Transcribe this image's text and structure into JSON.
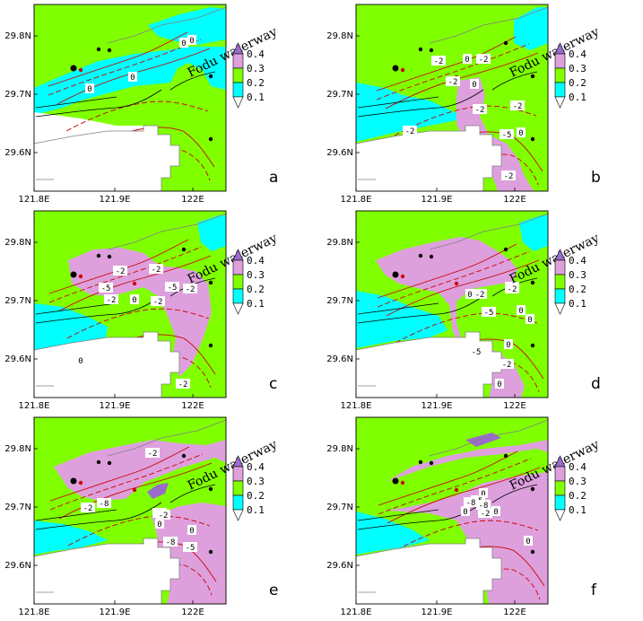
{
  "figure": {
    "waterway_label": "Fodu waterway",
    "x_ticks": [
      "121.8E",
      "121.9E",
      "122E"
    ],
    "y_ticks": [
      "29.8N",
      "29.7N",
      "29.6N"
    ],
    "legend_levels": [
      "0.4",
      "0.3",
      "0.2",
      "0.1"
    ],
    "legend_colors": [
      "#9b6bcc",
      "#dda0dd",
      "#80ff00",
      "#00ffff",
      "#ffffff"
    ],
    "contour_colors": {
      "positive": "#000000",
      "negative": "#cc0000",
      "coast": "#808080"
    },
    "panels": [
      {
        "label": "a",
        "contour_labels": [
          "0",
          "0",
          "0",
          "0"
        ]
      },
      {
        "label": "b",
        "contour_labels": [
          "-2",
          "-2",
          "-2",
          "-2",
          "-5",
          "-2",
          "-2",
          "0",
          "0",
          "0",
          "-2"
        ]
      },
      {
        "label": "c",
        "contour_labels": [
          "-2",
          "-2",
          "-5",
          "-2",
          "-2",
          "0",
          "-5",
          "-2",
          "-2",
          "0"
        ]
      },
      {
        "label": "d",
        "contour_labels": [
          "-2",
          "0",
          "-2",
          "-2",
          "-5",
          "-5",
          "0",
          "-2",
          "0",
          "0",
          "0"
        ]
      },
      {
        "label": "e",
        "contour_labels": [
          "-2",
          "-2",
          "-8",
          "-5",
          "0",
          "-8",
          "-5",
          "-2",
          "0"
        ]
      },
      {
        "label": "f",
        "contour_labels": [
          "0",
          "-5",
          "-8",
          "-8",
          "-2",
          "0",
          "0",
          "0"
        ]
      }
    ]
  }
}
